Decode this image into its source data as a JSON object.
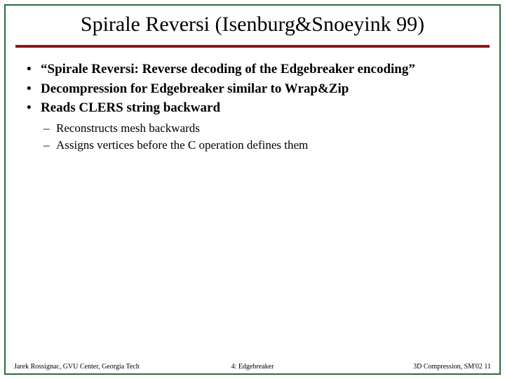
{
  "colors": {
    "border": "#2f6b3a",
    "underline": "#8b1a1a",
    "text": "#000000"
  },
  "title": "Spirale Reversi (Isenburg&Snoeyink 99)",
  "bullets": {
    "b1": "“Spirale Reversi: Reverse decoding of the Edgebreaker encoding”",
    "b2": "Decompression for Edgebreaker similar to Wrap&Zip",
    "b3": "Reads CLERS string backward"
  },
  "subbullets": {
    "s1": "Reconstructs mesh backwards",
    "s2": "Assigns vertices before the C operation defines them"
  },
  "footer": {
    "left": "Jarek Rossignac, GVU Center, Georgia Tech",
    "mid": "4: Edgebreaker",
    "right": "3D Compression, SM'02  11"
  }
}
